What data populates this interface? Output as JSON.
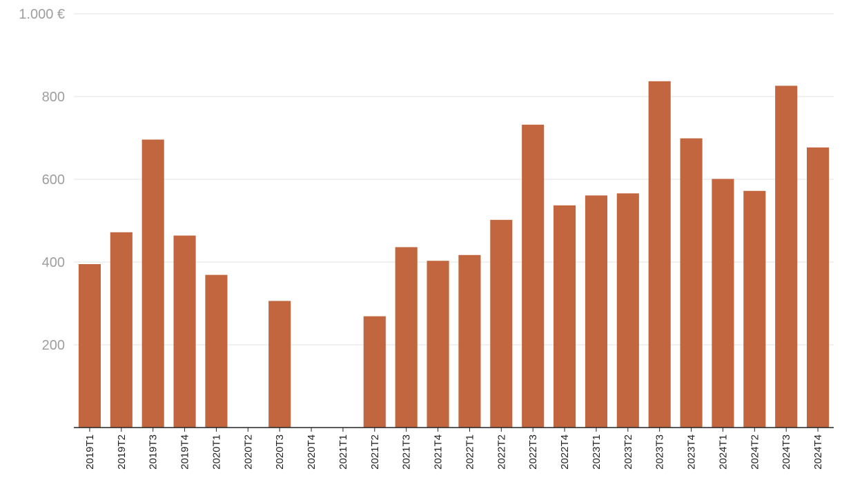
{
  "chart_data": {
    "type": "bar",
    "categories": [
      "2019T1",
      "2019T2",
      "2019T3",
      "2019T4",
      "2020T1",
      "2020T2",
      "2020T3",
      "2020T4",
      "2021T1",
      "2021T2",
      "2021T3",
      "2021T4",
      "2022T1",
      "2022T2",
      "2022T3",
      "2022T4",
      "2023T1",
      "2023T2",
      "2023T3",
      "2023T4",
      "2024T1",
      "2024T2",
      "2024T3",
      "2024T4"
    ],
    "values": [
      395,
      472,
      696,
      464,
      369,
      null,
      306,
      null,
      null,
      269,
      436,
      403,
      417,
      502,
      732,
      537,
      561,
      566,
      837,
      699,
      601,
      572,
      826,
      677
    ],
    "ylim": [
      0,
      1000
    ],
    "yticks": [
      200,
      400,
      600,
      800,
      1000
    ],
    "ytick_labels": [
      "200",
      "400",
      "600",
      "800",
      "1.000 €"
    ],
    "grid": true,
    "colors": {
      "bar": "#c1663f"
    }
  }
}
